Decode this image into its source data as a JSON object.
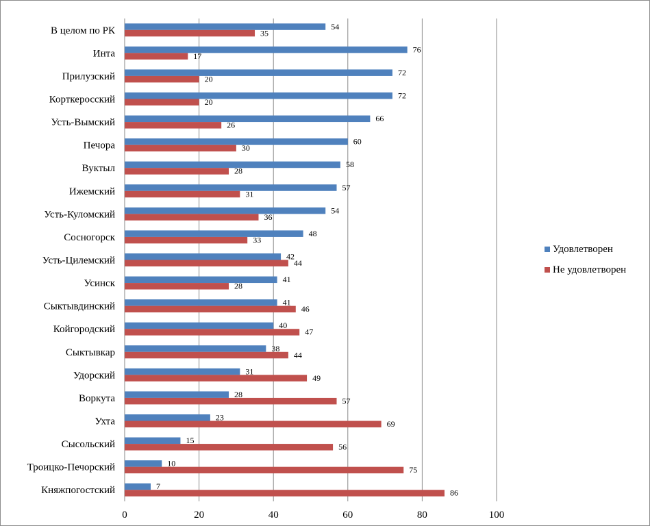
{
  "chart_data": {
    "type": "bar",
    "orientation": "horizontal",
    "categories": [
      "В целом по РК",
      "Инта",
      "Прилузский",
      "Корткеросский",
      "Усть-Вымский",
      "Печора",
      "Вуктыл",
      "Ижемский",
      "Усть-Куломский",
      "Сосногорск",
      "Усть-Цилемский",
      "Усинск",
      "Сыктывдинский",
      "Койгородский",
      "Сыктывкар",
      "Удорский",
      "Воркута",
      "Ухта",
      "Сысольский",
      "Троицко-Печорский",
      "Княжпогостский"
    ],
    "series": [
      {
        "name": "Удовлетворен",
        "color": "#4f81bd",
        "values": [
          54,
          76,
          72,
          72,
          66,
          60,
          58,
          57,
          54,
          48,
          42,
          41,
          41,
          40,
          38,
          31,
          28,
          23,
          15,
          10,
          7
        ]
      },
      {
        "name": "Не удовлетворен",
        "color": "#c0504d",
        "values": [
          35,
          17,
          20,
          20,
          26,
          30,
          28,
          31,
          36,
          33,
          44,
          28,
          46,
          47,
          44,
          49,
          57,
          69,
          56,
          75,
          86
        ]
      }
    ],
    "xlim": [
      0,
      100
    ],
    "xticks": [
      0,
      20,
      40,
      60,
      80,
      100
    ],
    "grid": true,
    "legend": "right",
    "data_labels": true
  }
}
